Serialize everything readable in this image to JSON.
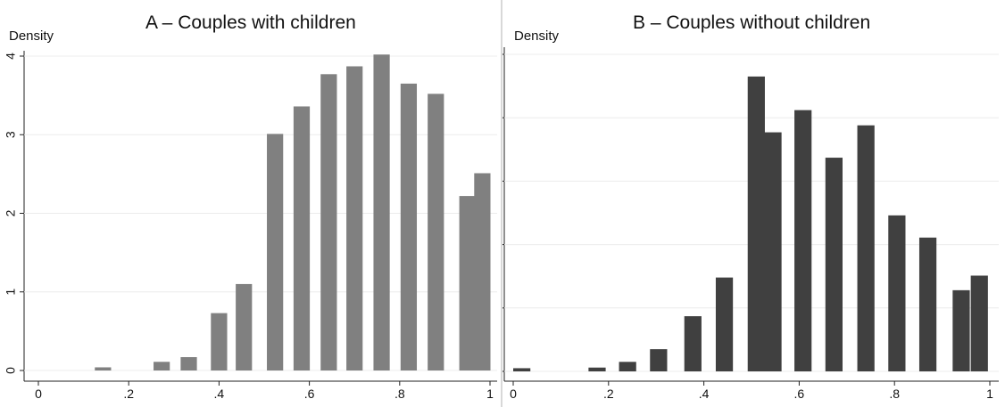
{
  "chart_data": [
    {
      "type": "bar",
      "title": "A – Couples with children",
      "ylabel": "Density",
      "xlabel": "",
      "xlim": [
        0,
        1
      ],
      "ylim": [
        0,
        4
      ],
      "xticks": [
        "0",
        ".2",
        ".4",
        ".6",
        ".8",
        "1"
      ],
      "yticks": [
        "0",
        "1",
        "2",
        "3",
        "4"
      ],
      "bar_color": "#808080",
      "bar_width": 0.036,
      "bars": [
        {
          "x": 0.143,
          "y": 0.04
        },
        {
          "x": 0.273,
          "y": 0.11
        },
        {
          "x": 0.333,
          "y": 0.17
        },
        {
          "x": 0.4,
          "y": 0.73
        },
        {
          "x": 0.455,
          "y": 1.1
        },
        {
          "x": 0.524,
          "y": 3.01
        },
        {
          "x": 0.583,
          "y": 3.36
        },
        {
          "x": 0.643,
          "y": 3.77
        },
        {
          "x": 0.7,
          "y": 3.87
        },
        {
          "x": 0.76,
          "y": 4.02
        },
        {
          "x": 0.82,
          "y": 3.65
        },
        {
          "x": 0.88,
          "y": 3.52
        },
        {
          "x": 0.95,
          "y": 2.22
        },
        {
          "x": 0.983,
          "y": 2.51
        }
      ]
    },
    {
      "type": "bar",
      "title": "B – Couples without children",
      "ylabel": "Density",
      "xlabel": "",
      "xlim": [
        0,
        1
      ],
      "ylim": [
        0,
        5
      ],
      "xticks": [
        "0",
        ".2",
        ".4",
        ".6",
        ".8",
        "1"
      ],
      "yticks": [
        "0",
        "1",
        "2",
        "3",
        "4",
        "5"
      ],
      "bar_color": "#404040",
      "bar_width": 0.036,
      "bars": [
        {
          "x": 0.018,
          "y": 0.05
        },
        {
          "x": 0.176,
          "y": 0.06
        },
        {
          "x": 0.24,
          "y": 0.15
        },
        {
          "x": 0.305,
          "y": 0.35
        },
        {
          "x": 0.377,
          "y": 0.87
        },
        {
          "x": 0.443,
          "y": 1.48
        },
        {
          "x": 0.51,
          "y": 4.65
        },
        {
          "x": 0.545,
          "y": 3.77
        },
        {
          "x": 0.608,
          "y": 4.12
        },
        {
          "x": 0.673,
          "y": 3.37
        },
        {
          "x": 0.74,
          "y": 3.88
        },
        {
          "x": 0.805,
          "y": 2.46
        },
        {
          "x": 0.87,
          "y": 2.11
        },
        {
          "x": 0.94,
          "y": 1.28
        },
        {
          "x": 0.978,
          "y": 1.51
        }
      ]
    }
  ]
}
